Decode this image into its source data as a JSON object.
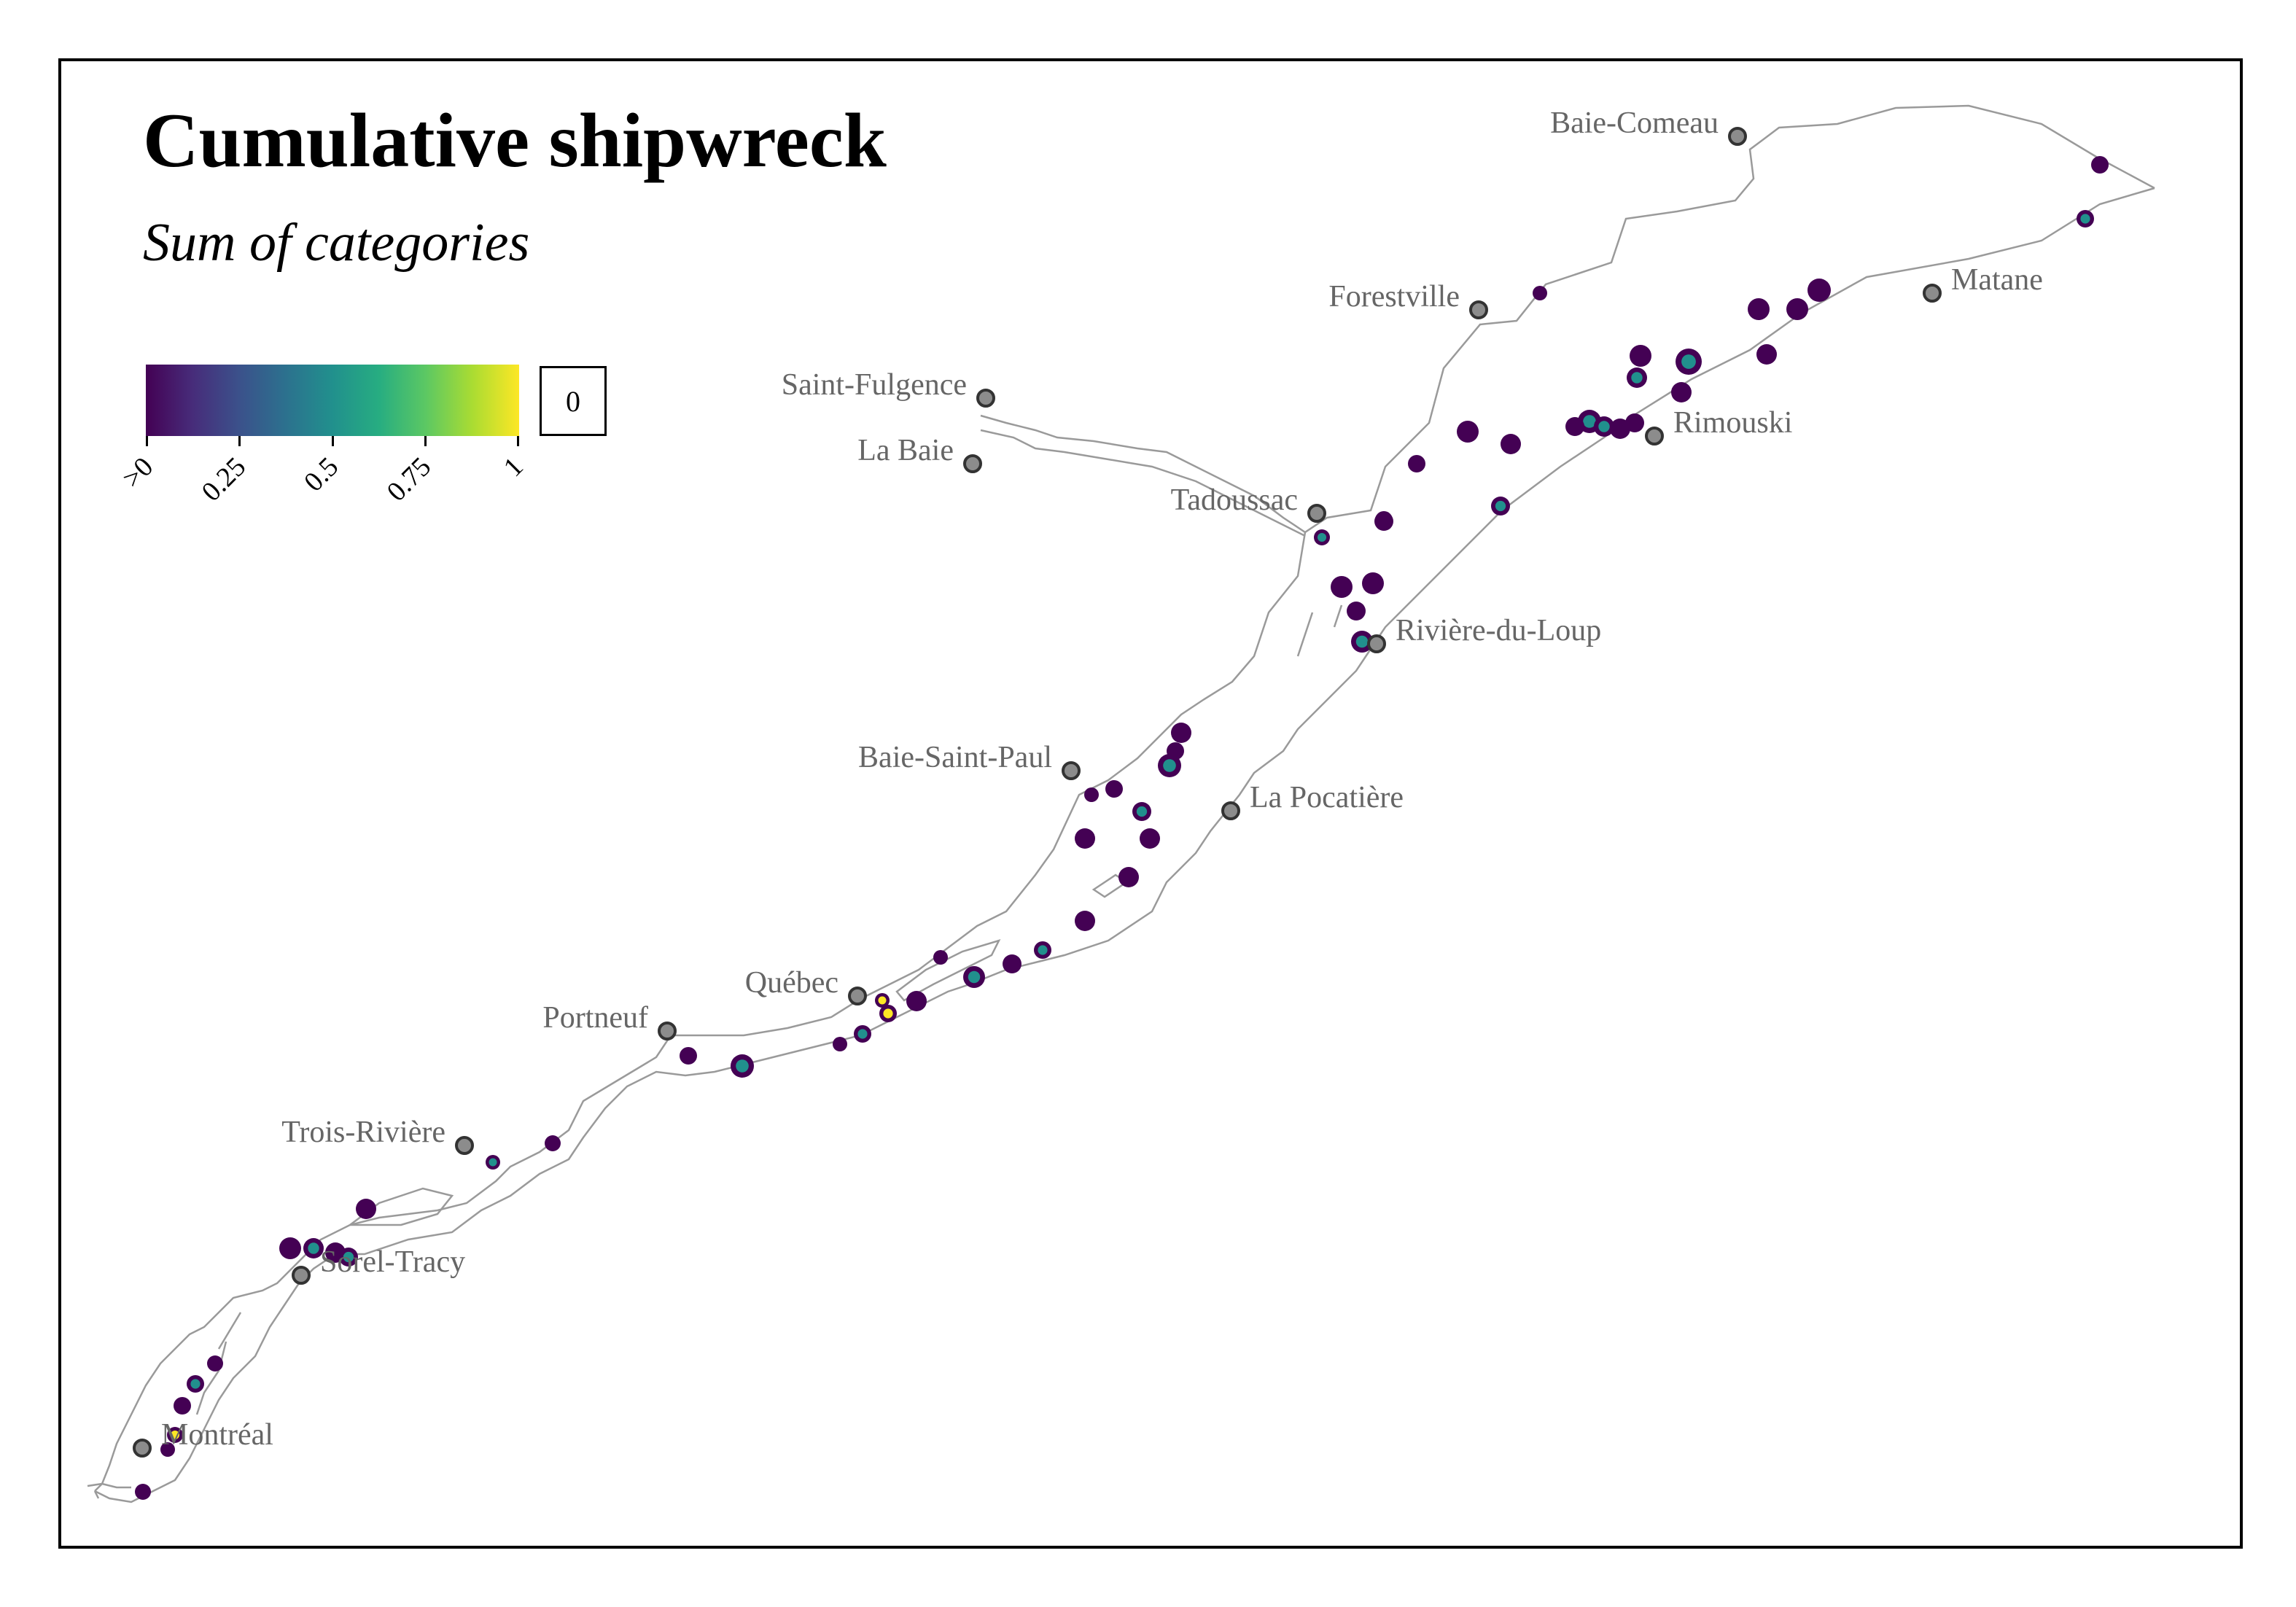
{
  "title": "Cumulative shipwreck",
  "subtitle": "Sum of categories",
  "legend": {
    "colors": [
      "#440154",
      "#472c7a",
      "#3b518b",
      "#2c718e",
      "#21908d",
      "#27ad81",
      "#5cc863",
      "#aadc32",
      "#fde725"
    ],
    "ticks": [
      ">0",
      "0.25",
      "0.5",
      "0.75",
      "1"
    ],
    "tick_values": [
      0,
      0.25,
      0.5,
      0.75,
      1
    ],
    "zero_label": "0"
  },
  "cities": [
    {
      "name": "Baie-Comeau",
      "label_side": "left"
    },
    {
      "name": "Forestville",
      "label_side": "left"
    },
    {
      "name": "Matane",
      "label_side": "right"
    },
    {
      "name": "Saint-Fulgence",
      "label_side": "left"
    },
    {
      "name": "La Baie",
      "label_side": "left"
    },
    {
      "name": "Tadoussac",
      "label_side": "left"
    },
    {
      "name": "Rimouski",
      "label_side": "right"
    },
    {
      "name": "Rivière-du-Loup",
      "label_side": "right"
    },
    {
      "name": "Baie-Saint-Paul",
      "label_side": "left"
    },
    {
      "name": "La Pocatière",
      "label_side": "right"
    },
    {
      "name": "Québec",
      "label_side": "left"
    },
    {
      "name": "Portneuf",
      "label_side": "left"
    },
    {
      "name": "Trois-Rivière",
      "label_side": "left"
    },
    {
      "name": "Sorel-Tracy",
      "label_side": "right"
    },
    {
      "name": "Montréal",
      "label_side": "right"
    }
  ],
  "colors": {
    "shoreline": "#9a9a9a",
    "city_marker_fill": "#8c8c8c",
    "city_marker_stroke": "#333333",
    "city_label": "#666666",
    "wreck_low": "#440154",
    "wreck_mid": "#3b528b",
    "wreck_teal": "#21908d",
    "wreck_high": "#fde725"
  }
}
